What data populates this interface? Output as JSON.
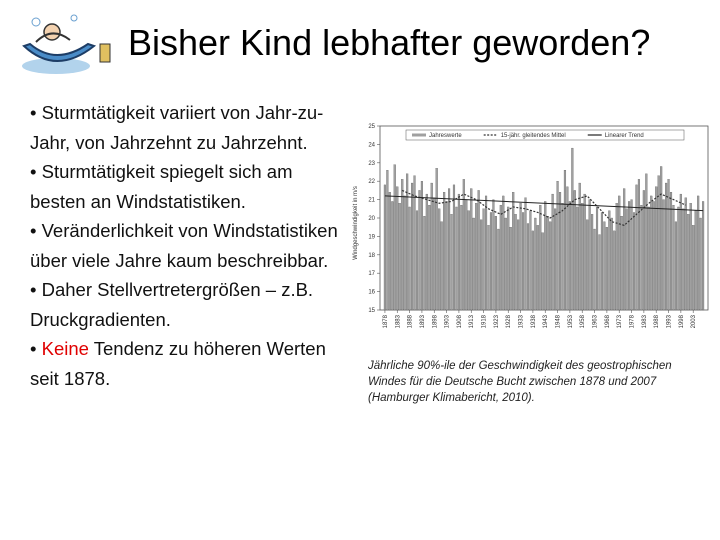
{
  "title": "Bisher Kind lebhafter geworden?",
  "bullets": [
    "• Sturmtätigkeit variiert von Jahr-zu-Jahr, von Jahrzehnt zu Jahrzehnt.",
    "• Sturmtätigkeit spiegelt sich am besten an Windstatistiken.",
    "• Veränderlichkeit von Windstatistiken über viele Jahre kaum beschreibbar.",
    "• Daher Stellvertretergrößen – z.B. Druckgradienten."
  ],
  "last_bullet": {
    "marker": "•",
    "highlight": "Keine",
    "text": "Tendenz zu höheren Werten seit 1878."
  },
  "caption": "Jährliche 90%-ile der Geschwindigkeit des geostrophischen Windes für die Deutsche Bucht zwischen 1878 und 2007 (Hamburger Klimabericht, 2010).",
  "chart_data": {
    "type": "bar",
    "y_label": "Windgeschwindigkeit in m/s",
    "legend": "top",
    "xlim": [
      1876,
      2009
    ],
    "xticks": [
      1878,
      1883,
      1888,
      1893,
      1898,
      1903,
      1908,
      1913,
      1918,
      1923,
      1928,
      1933,
      1938,
      1943,
      1948,
      1953,
      1958,
      1963,
      1968,
      1973,
      1978,
      1983,
      1988,
      1993,
      1998,
      2003
    ],
    "ylim": [
      15,
      25
    ],
    "yticks": [
      15,
      16,
      17,
      18,
      19,
      20,
      21,
      22,
      23,
      24,
      25
    ],
    "x": [
      1878,
      1879,
      1880,
      1881,
      1882,
      1883,
      1884,
      1885,
      1886,
      1887,
      1888,
      1889,
      1890,
      1891,
      1892,
      1893,
      1894,
      1895,
      1896,
      1897,
      1898,
      1899,
      1900,
      1901,
      1902,
      1903,
      1904,
      1905,
      1906,
      1907,
      1908,
      1909,
      1910,
      1911,
      1912,
      1913,
      1914,
      1915,
      1916,
      1917,
      1918,
      1919,
      1920,
      1921,
      1922,
      1923,
      1924,
      1925,
      1926,
      1927,
      1928,
      1929,
      1930,
      1931,
      1932,
      1933,
      1934,
      1935,
      1936,
      1937,
      1938,
      1939,
      1940,
      1941,
      1942,
      1943,
      1944,
      1945,
      1946,
      1947,
      1948,
      1949,
      1950,
      1951,
      1952,
      1953,
      1954,
      1955,
      1956,
      1957,
      1958,
      1959,
      1960,
      1961,
      1962,
      1963,
      1964,
      1965,
      1966,
      1967,
      1968,
      1969,
      1970,
      1971,
      1972,
      1973,
      1974,
      1975,
      1976,
      1977,
      1978,
      1979,
      1980,
      1981,
      1982,
      1983,
      1984,
      1985,
      1986,
      1987,
      1988,
      1989,
      1990,
      1991,
      1992,
      1993,
      1994,
      1995,
      1996,
      1997,
      1998,
      1999,
      2000,
      2001,
      2002,
      2003,
      2004,
      2005,
      2006,
      2007
    ],
    "series": [
      {
        "name": "Jahreswerte",
        "color": "#a0a0a0",
        "values": [
          21.8,
          22.6,
          21.4,
          20.9,
          22.9,
          21.7,
          20.8,
          22.1,
          21.2,
          22.4,
          20.6,
          21.9,
          22.3,
          20.4,
          21.5,
          22.0,
          20.1,
          21.3,
          20.7,
          21.9,
          21.1,
          22.7,
          20.5,
          19.8,
          21.4,
          20.9,
          21.6,
          20.2,
          21.8,
          20.6,
          21.3,
          20.7,
          22.1,
          21.0,
          20.4,
          21.6,
          20.0,
          20.8,
          21.5,
          19.9,
          20.5,
          21.2,
          19.6,
          20.3,
          21.0,
          20.1,
          19.4,
          20.7,
          21.2,
          20.0,
          20.6,
          19.5,
          21.4,
          20.2,
          19.9,
          20.8,
          20.3,
          21.1,
          19.7,
          20.4,
          19.3,
          20.0,
          19.6,
          20.7,
          19.2,
          20.9,
          20.1,
          19.8,
          21.3,
          20.5,
          22.0,
          21.4,
          20.8,
          22.6,
          21.7,
          20.9,
          23.8,
          21.5,
          20.6,
          21.9,
          20.8,
          21.3,
          19.9,
          21.0,
          20.2,
          19.4,
          20.6,
          19.1,
          20.3,
          19.8,
          19.5,
          20.4,
          20.0,
          19.3,
          20.8,
          21.2,
          20.1,
          21.6,
          20.5,
          20.9,
          21.0,
          20.3,
          21.8,
          22.1,
          20.7,
          21.5,
          22.4,
          20.6,
          21.2,
          20.9,
          21.7,
          22.3,
          22.8,
          21.0,
          21.9,
          22.1,
          21.4,
          20.7,
          19.8,
          20.6,
          21.3,
          20.5,
          21.1,
          20.2,
          20.8,
          19.6,
          20.4,
          21.2,
          20.0,
          20.9
        ]
      },
      {
        "name": "15-jähr. gleitendes Mittel",
        "color": "#333333",
        "x": [
          1885,
          1890,
          1895,
          1900,
          1905,
          1910,
          1915,
          1920,
          1925,
          1930,
          1935,
          1940,
          1945,
          1950,
          1955,
          1960,
          1965,
          1970,
          1975,
          1980,
          1985,
          1990,
          1995,
          2000
        ],
        "values": [
          21.5,
          21.2,
          21.0,
          20.8,
          20.9,
          21.3,
          21.0,
          20.5,
          20.2,
          20.6,
          20.5,
          20.3,
          20.0,
          20.4,
          21.0,
          21.2,
          20.5,
          19.8,
          19.6,
          20.2,
          20.8,
          21.3,
          21.0,
          20.7
        ]
      },
      {
        "name": "Linearer Trend",
        "color": "#222222",
        "x": [
          1878,
          2007
        ],
        "values": [
          21.2,
          20.4
        ]
      }
    ]
  }
}
